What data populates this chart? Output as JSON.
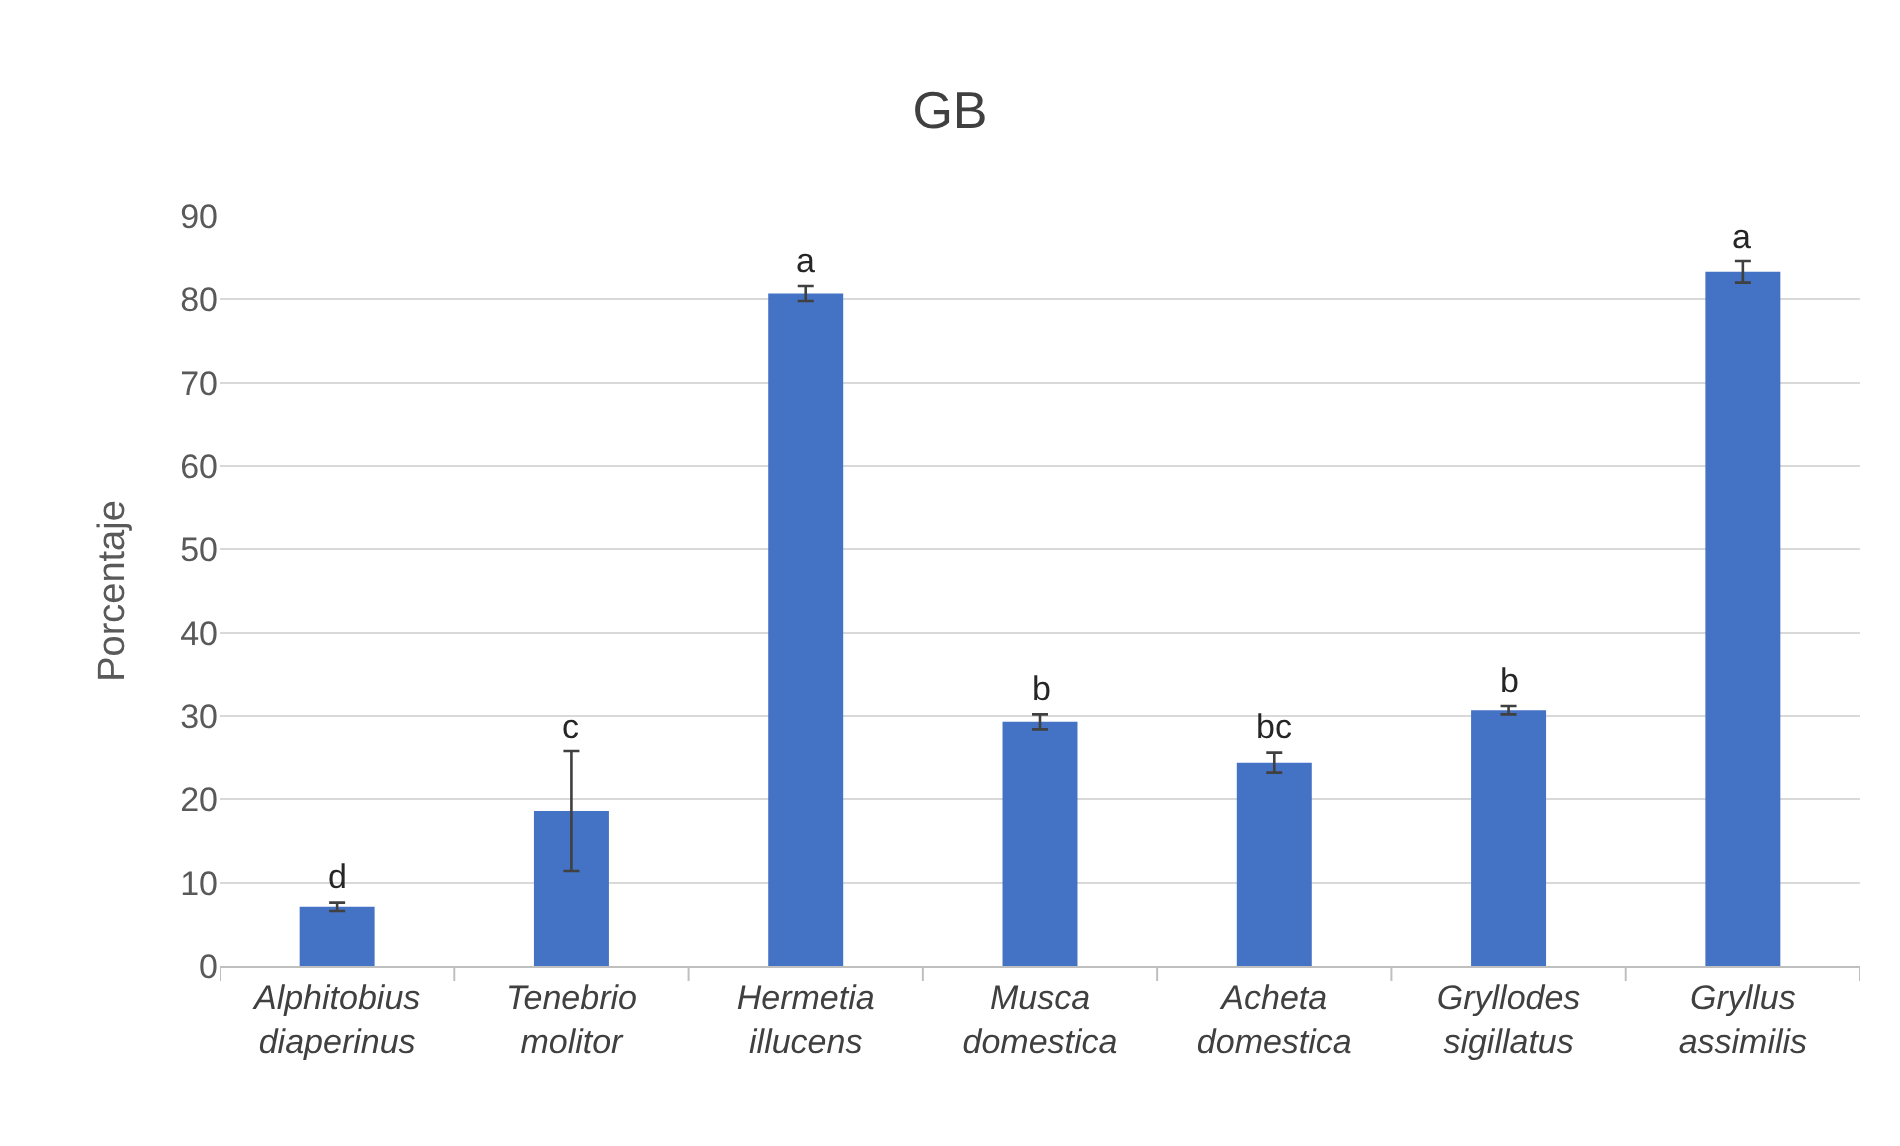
{
  "chart_data": {
    "type": "bar",
    "title": "GB",
    "ylabel": "Porcentaje",
    "categories": [
      "Alphitobius diaperinus",
      "Tenebrio molitor",
      "Hermetia illucens",
      "Musca domestica",
      "Acheta domestica",
      "Gryllodes sigillatus",
      "Gryllus assimilis"
    ],
    "values": [
      7.1,
      18.6,
      80.7,
      29.3,
      24.4,
      30.7,
      83.3
    ],
    "errors": [
      0.5,
      7.2,
      0.9,
      0.9,
      1.2,
      0.5,
      1.3
    ],
    "color": "#4472c4",
    "ylim": [
      0,
      90
    ],
    "yticks": [
      0,
      10,
      20,
      30,
      40,
      50,
      60,
      70,
      80,
      90
    ],
    "grid": "y",
    "annotations": [
      {
        "text": "d",
        "x": "Alphitobius diaperinus",
        "y": 7.6
      },
      {
        "text": "c",
        "x": "Tenebrio molitor",
        "y": 25.8
      },
      {
        "text": "a",
        "x": "Hermetia illucens",
        "y": 81.6
      },
      {
        "text": "b",
        "x": "Musca domestica",
        "y": 30.2
      },
      {
        "text": "bc",
        "x": "Acheta domestica",
        "y": 25.6
      },
      {
        "text": "b",
        "x": "Gryllodes sigillatus",
        "y": 31.2
      },
      {
        "text": "a",
        "x": "Gryllus assimilis",
        "y": 84.6
      }
    ]
  }
}
